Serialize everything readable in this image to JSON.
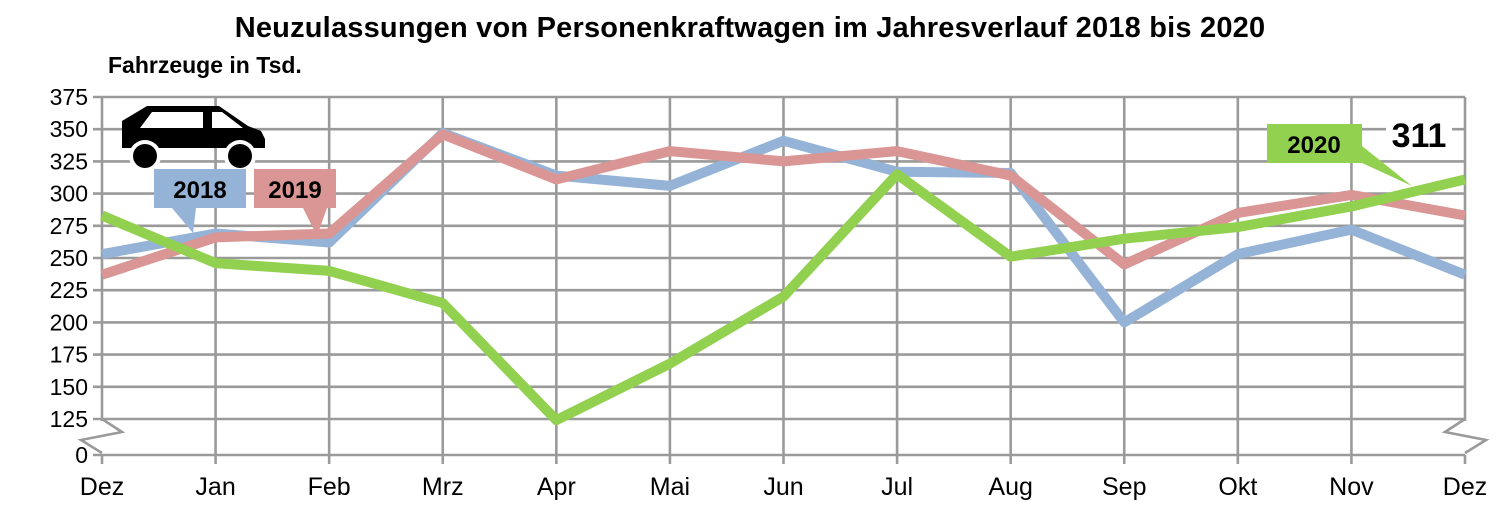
{
  "chart_data": {
    "type": "line",
    "title": "Neuzulassungen von Personenkraftwagen im Jahresverlauf 2018 bis 2020",
    "ylabel": "Fahrzeuge in Tsd.",
    "categories": [
      "Dez",
      "Jan",
      "Feb",
      "Mrz",
      "Apr",
      "Mai",
      "Jun",
      "Jul",
      "Aug",
      "Sep",
      "Okt",
      "Nov",
      "Dez"
    ],
    "y_ticks": [
      0,
      125,
      150,
      175,
      200,
      225,
      250,
      275,
      300,
      325,
      350,
      375
    ],
    "ylim_note": "axis break between 0 and 125",
    "grid": true,
    "legend_position": "callout boxes on lines",
    "series": [
      {
        "name": "2018",
        "color": "#95B3D7",
        "values": [
          253,
          269,
          262,
          347,
          314,
          306,
          341,
          317,
          316,
          200,
          253,
          272,
          237
        ]
      },
      {
        "name": "2019",
        "color": "#D99694",
        "values": [
          237,
          266,
          269,
          346,
          311,
          333,
          325,
          333,
          314,
          245,
          285,
          299,
          283
        ]
      },
      {
        "name": "2020",
        "color": "#92D050",
        "values": [
          283,
          246,
          240,
          215,
          121,
          168,
          220,
          315,
          251,
          265,
          274,
          290,
          311
        ]
      }
    ],
    "end_value_label": "311",
    "icons": {
      "car_pictogram": "black side-view car",
      "axis_break": "zigzag"
    },
    "colors": {
      "gridline": "#9A9A9A",
      "text": "#000000",
      "background": "#FFFFFF",
      "icon": "#000000"
    }
  }
}
